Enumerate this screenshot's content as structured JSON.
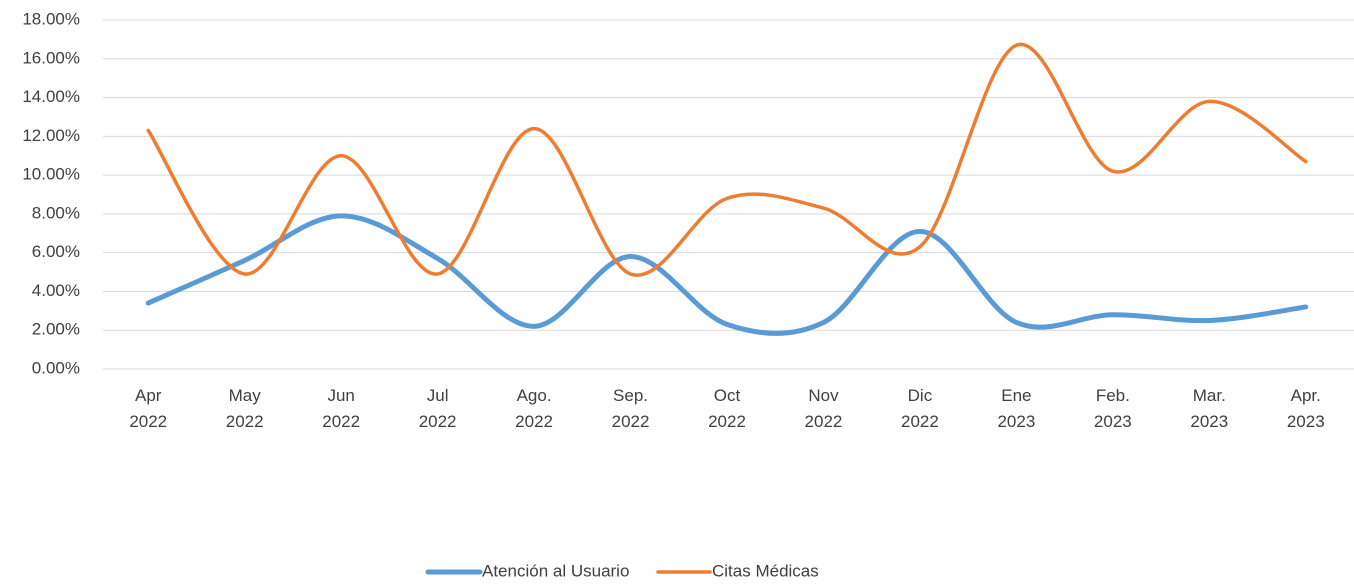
{
  "chart_data": {
    "type": "line",
    "categories": [
      "Apr 2022",
      "May 2022",
      "Jun 2022",
      "Jul 2022",
      "Ago. 2022",
      "Sep. 2022",
      "Oct 2022",
      "Nov 2022",
      "Dic 2022",
      "Ene 2023",
      "Feb. 2023",
      "Mar. 2023",
      "Apr. 2023"
    ],
    "series": [
      {
        "name": "Atención al Usuario",
        "color": "#5b9bd5",
        "values": [
          3.4,
          5.6,
          7.9,
          5.7,
          2.2,
          5.8,
          2.3,
          2.4,
          7.1,
          2.4,
          2.8,
          2.5,
          3.2
        ]
      },
      {
        "name": "Citas Médicas",
        "color": "#ed7d31",
        "values": [
          12.3,
          4.9,
          11.0,
          4.9,
          12.4,
          4.9,
          8.8,
          8.3,
          6.3,
          16.7,
          10.2,
          13.8,
          10.7
        ]
      }
    ],
    "ylim": [
      0,
      18
    ],
    "yticks": [
      {
        "value": 0,
        "label": "0.00%"
      },
      {
        "value": 2,
        "label": "2.00%"
      },
      {
        "value": 4,
        "label": "4.00%"
      },
      {
        "value": 6,
        "label": "6.00%"
      },
      {
        "value": 8,
        "label": "8.00%"
      },
      {
        "value": 10,
        "label": "10.00%"
      },
      {
        "value": 12,
        "label": "12.00%"
      },
      {
        "value": 14,
        "label": "14.00%"
      },
      {
        "value": 16,
        "label": "16.00%"
      },
      {
        "value": 18,
        "label": "18.00%"
      }
    ],
    "grid": true,
    "smooth": true,
    "legend": "bottom"
  }
}
